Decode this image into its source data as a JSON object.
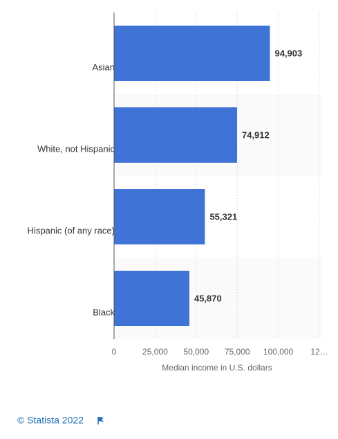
{
  "chart_data": {
    "type": "bar",
    "orientation": "horizontal",
    "categories": [
      "Asian",
      "White, not Hispanic",
      "Hispanic (of any race)",
      "Black"
    ],
    "values": [
      94903,
      74912,
      55321,
      45870
    ],
    "value_labels": [
      "94,903",
      "74,912",
      "55,321",
      "45,870"
    ],
    "color": "#3f74d6",
    "xlim": [
      0,
      125000
    ],
    "xticks": [
      0,
      {
        "value": 25000,
        "label": "25,000"
      },
      {
        "value": 50000,
        "label": "50,000"
      },
      {
        "value": 75000,
        "label": "75,000"
      },
      {
        "value": 100000,
        "label": "100,000"
      },
      {
        "value": 125000,
        "label": "12…"
      }
    ],
    "xlabel": "Median income in U.S. dollars",
    "grid": true
  },
  "footer": {
    "credit": "© Statista 2022"
  }
}
